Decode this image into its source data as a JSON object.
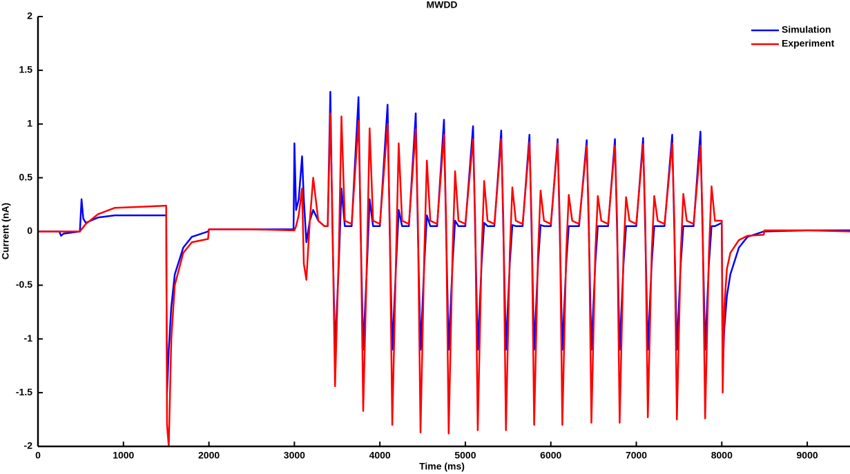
{
  "chart_data": {
    "type": "line",
    "title": "MWDD",
    "xlabel": "Time (ms)",
    "ylabel": "Current (nA)",
    "xlim": [
      0,
      9500
    ],
    "xticks": [
      0,
      1000,
      2000,
      3000,
      4000,
      5000,
      6000,
      7000,
      8000,
      9000
    ],
    "ylim": [
      -2,
      2
    ],
    "yticks": [
      -2,
      -1.5,
      -1,
      -0.5,
      0,
      0.5,
      1,
      1.5,
      2
    ],
    "legend": "upper right",
    "x": [
      0,
      250,
      270,
      300,
      490,
      510,
      530,
      560,
      700,
      900,
      1200,
      1490,
      1500,
      1510,
      1530,
      1560,
      1600,
      1700,
      1800,
      1990,
      2000,
      2500,
      2990,
      3000,
      3020,
      3050,
      3090,
      3110,
      3140,
      3180,
      3220,
      3280,
      3350,
      3390,
      3420,
      3445,
      3475,
      3520,
      3550,
      3590,
      3670,
      3750,
      3775,
      3805,
      3850,
      3880,
      3920,
      4000,
      4090,
      4115,
      4145,
      4190,
      4220,
      4260,
      4340,
      4420,
      4445,
      4475,
      4520,
      4550,
      4590,
      4670,
      4750,
      4775,
      4805,
      4850,
      4880,
      4920,
      5000,
      5090,
      5115,
      5145,
      5190,
      5220,
      5260,
      5340,
      5420,
      5445,
      5475,
      5520,
      5550,
      5590,
      5670,
      5750,
      5775,
      5805,
      5850,
      5880,
      5920,
      6000,
      6080,
      6105,
      6135,
      6180,
      6210,
      6250,
      6330,
      6420,
      6445,
      6475,
      6520,
      6550,
      6590,
      6670,
      6750,
      6775,
      6805,
      6850,
      6880,
      6920,
      7000,
      7080,
      7105,
      7135,
      7180,
      7210,
      7250,
      7330,
      7420,
      7445,
      7475,
      7520,
      7550,
      7590,
      7670,
      7750,
      7775,
      7805,
      7850,
      7880,
      7920,
      8000,
      8010,
      8030,
      8060,
      8100,
      8200,
      8300,
      8490,
      8500,
      9000,
      9500
    ],
    "series": [
      {
        "name": "Simulation",
        "color": "#0000ff",
        "values": [
          0,
          0,
          -0.04,
          -0.02,
          0,
          0.3,
          0.12,
          0.08,
          0.13,
          0.15,
          0.15,
          0.15,
          0.15,
          -1.5,
          -1.1,
          -0.7,
          -0.4,
          -0.15,
          -0.05,
          0,
          0.02,
          0.02,
          0.02,
          0.82,
          0.2,
          0.3,
          0.7,
          0.3,
          -0.1,
          0.1,
          0.2,
          0.1,
          0.05,
          0.05,
          1.3,
          0,
          -1.1,
          -0.3,
          0.4,
          0.05,
          0.05,
          1.25,
          0,
          -1.1,
          -0.3,
          0.3,
          0.05,
          0.05,
          1.18,
          0,
          -1.1,
          -0.3,
          0.2,
          0.05,
          0.05,
          1.1,
          0,
          -1.1,
          -0.3,
          0.15,
          0.05,
          0.05,
          1.04,
          0,
          -1.1,
          -0.3,
          0.1,
          0.05,
          0.05,
          0.98,
          0,
          -1.1,
          -0.3,
          0.08,
          0.05,
          0.05,
          0.94,
          0,
          -1.1,
          -0.3,
          0.06,
          0.05,
          0.05,
          0.9,
          0,
          -1.1,
          -0.3,
          0.06,
          0.05,
          0.05,
          0.86,
          0,
          -1.1,
          -0.3,
          0.05,
          0.05,
          0.05,
          0.85,
          0,
          -1.1,
          -0.3,
          0.05,
          0.05,
          0.05,
          0.86,
          0,
          -1.1,
          -0.3,
          0.05,
          0.05,
          0.05,
          0.87,
          0,
          -1.1,
          -0.3,
          0.05,
          0.05,
          0.05,
          0.9,
          0,
          -1.1,
          -0.3,
          0.05,
          0.05,
          0.05,
          0.93,
          0,
          -1.1,
          -0.3,
          0.05,
          0.05,
          0.08,
          -1.3,
          -0.9,
          -0.6,
          -0.4,
          -0.15,
          -0.05,
          0,
          0,
          0.01,
          0.01
        ]
      },
      {
        "name": "Experiment",
        "color": "#ff0000",
        "values": [
          0,
          0,
          0,
          0,
          0,
          0.02,
          0.04,
          0.07,
          0.16,
          0.22,
          0.23,
          0.24,
          0.24,
          -1.8,
          -2,
          -1,
          -0.5,
          -0.2,
          -0.1,
          -0.07,
          0.02,
          0.02,
          0.01,
          0.01,
          0.05,
          0.15,
          0.4,
          -0.3,
          -0.45,
          0.1,
          0.5,
          0.1,
          0.05,
          0.05,
          1.1,
          0.1,
          -1.44,
          -0.2,
          1.07,
          0.1,
          0.07,
          1.03,
          0.1,
          -1.67,
          -0.2,
          0.96,
          0.1,
          0.07,
          1,
          0.1,
          -1.8,
          -0.2,
          0.82,
          0.1,
          0.07,
          0.95,
          0.1,
          -1.87,
          -0.2,
          0.66,
          0.1,
          0.07,
          0.9,
          0.1,
          -1.88,
          -0.2,
          0.56,
          0.1,
          0.07,
          0.86,
          0.1,
          -1.85,
          -0.2,
          0.47,
          0.1,
          0.07,
          0.86,
          0.1,
          -1.85,
          -0.2,
          0.41,
          0.1,
          0.07,
          0.83,
          0.1,
          -1.8,
          -0.2,
          0.38,
          0.1,
          0.07,
          0.82,
          0.1,
          -1.8,
          -0.2,
          0.34,
          0.1,
          0.07,
          0.8,
          0.1,
          -1.78,
          -0.2,
          0.33,
          0.1,
          0.07,
          0.8,
          0.1,
          -1.78,
          -0.2,
          0.32,
          0.1,
          0.07,
          0.81,
          0.1,
          -1.73,
          -0.2,
          0.33,
          0.1,
          0.07,
          0.82,
          0.1,
          -1.75,
          -0.2,
          0.35,
          0.1,
          0.07,
          0.8,
          0.1,
          -1.74,
          -0.2,
          0.42,
          0.1,
          0.1,
          -1.5,
          -0.7,
          -0.35,
          -0.2,
          -0.08,
          -0.04,
          -0.03,
          0.01,
          0.01,
          0
        ]
      }
    ]
  }
}
